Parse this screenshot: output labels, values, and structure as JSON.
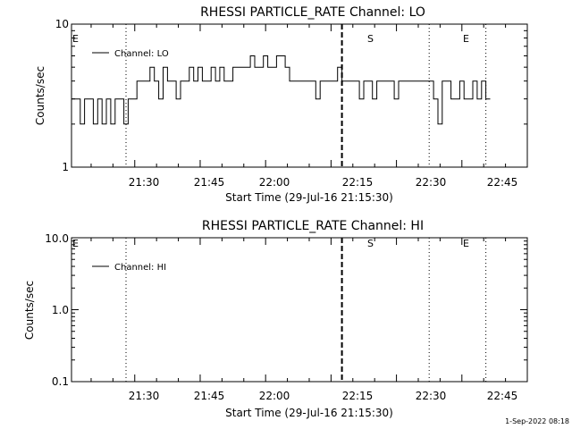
{
  "chart_data": [
    {
      "type": "line",
      "title": "RHESSI PARTICLE_RATE Channel: LO",
      "xlabel": "Start Time (29-Jul-16 21:15:30)",
      "ylabel": "Counts/sec",
      "y_scale": "log",
      "ylim": [
        1,
        10
      ],
      "xlim": [
        "21:15:30",
        "23:00:00"
      ],
      "x_tick_labels": [
        "21:30",
        "21:45",
        "22:00",
        "22:15",
        "22:30",
        "22:45"
      ],
      "y_tick_labels": [
        "1",
        "10"
      ],
      "legend": [
        "Channel: LO"
      ],
      "legend_position": "top-left",
      "grid": false,
      "markers": [
        {
          "label": "E",
          "time": "21:15:30",
          "style": "dotted"
        },
        {
          "label": "",
          "time": "21:28:00",
          "style": "dotted"
        },
        {
          "label": "S",
          "time": "22:17:30",
          "style": "dashed"
        },
        {
          "label": "E",
          "time": "22:37:30",
          "style": "dotted"
        },
        {
          "label": "",
          "time": "22:50:30",
          "style": "dotted"
        }
      ],
      "series": [
        {
          "name": "Channel: LO",
          "x": [
            "21:15:30",
            "21:16:30",
            "21:17:30",
            "21:18:30",
            "21:19:30",
            "21:20:30",
            "21:21:30",
            "21:22:30",
            "21:23:30",
            "21:24:30",
            "21:25:30",
            "21:26:30",
            "21:27:30",
            "21:28:30",
            "21:29:30",
            "21:30:30",
            "21:31:30",
            "21:32:30",
            "21:33:30",
            "21:34:30",
            "21:35:30",
            "21:36:30",
            "21:37:30",
            "21:38:30",
            "21:39:30",
            "21:40:30",
            "21:41:30",
            "21:42:30",
            "21:43:30",
            "21:44:30",
            "21:45:30",
            "21:46:30",
            "21:47:30",
            "21:48:30",
            "21:49:30",
            "21:50:30",
            "21:51:30",
            "21:52:30",
            "21:53:30",
            "21:54:30",
            "21:55:30",
            "21:56:30",
            "21:57:30",
            "21:58:30",
            "21:59:30",
            "22:00:30",
            "22:01:30",
            "22:02:30",
            "22:03:30",
            "22:04:30",
            "22:05:30",
            "22:06:30",
            "22:07:30",
            "22:08:30",
            "22:09:30",
            "22:10:30",
            "22:11:30",
            "22:12:30",
            "22:13:30",
            "22:14:30",
            "22:15:30",
            "22:16:30",
            "22:17:30",
            "22:18:30",
            "22:19:30",
            "22:20:30",
            "22:21:30",
            "22:22:30",
            "22:23:30",
            "22:24:30",
            "22:25:30",
            "22:26:30",
            "22:27:30",
            "22:28:30",
            "22:29:30",
            "22:30:30",
            "22:31:30",
            "22:32:30",
            "22:33:30",
            "22:34:30",
            "22:35:30",
            "22:36:30",
            "22:37:30",
            "22:38:30",
            "22:39:30",
            "22:40:30",
            "22:41:30",
            "22:42:30",
            "22:43:30",
            "22:44:30",
            "22:45:30",
            "22:46:30",
            "22:47:30",
            "22:48:30",
            "22:49:30",
            "22:50:30"
          ],
          "y": [
            3,
            3,
            2,
            3,
            3,
            2,
            3,
            2,
            3,
            2,
            3,
            3,
            2,
            3,
            3,
            4,
            4,
            4,
            5,
            4,
            3,
            5,
            4,
            4,
            3,
            4,
            4,
            5,
            4,
            5,
            4,
            4,
            5,
            4,
            5,
            4,
            4,
            5,
            5,
            5,
            5,
            6,
            5,
            5,
            6,
            5,
            5,
            6,
            6,
            5,
            4,
            4,
            4,
            4,
            4,
            4,
            3,
            4,
            4,
            4,
            4,
            5,
            4,
            4,
            4,
            4,
            3,
            4,
            4,
            3,
            4,
            4,
            4,
            4,
            3,
            4,
            4,
            4,
            4,
            4,
            4,
            4,
            4,
            3,
            2,
            4,
            4,
            3,
            3,
            4,
            3,
            3,
            4,
            3,
            4,
            3
          ]
        }
      ]
    },
    {
      "type": "line",
      "title": "RHESSI PARTICLE_RATE Channel: HI",
      "xlabel": "Start Time (29-Jul-16 21:15:30)",
      "ylabel": "Counts/sec",
      "y_scale": "log",
      "ylim": [
        0.1,
        10
      ],
      "xlim": [
        "21:15:30",
        "23:00:00"
      ],
      "x_tick_labels": [
        "21:30",
        "21:45",
        "22:00",
        "22:15",
        "22:30",
        "22:45"
      ],
      "y_tick_labels": [
        "0.1",
        "1.0",
        "10.0"
      ],
      "legend": [
        "Channel: HI"
      ],
      "legend_position": "top-left",
      "grid": false,
      "markers": [
        {
          "label": "E",
          "time": "21:15:30",
          "style": "dotted"
        },
        {
          "label": "",
          "time": "21:28:00",
          "style": "dotted"
        },
        {
          "label": "S",
          "time": "22:17:30",
          "style": "dashed"
        },
        {
          "label": "E",
          "time": "22:37:30",
          "style": "dotted"
        },
        {
          "label": "",
          "time": "22:50:30",
          "style": "dotted"
        }
      ],
      "series": [
        {
          "name": "Channel: HI",
          "x": [],
          "y": []
        }
      ]
    }
  ],
  "footer": {
    "timestamp": "1-Sep-2022 08:18"
  }
}
